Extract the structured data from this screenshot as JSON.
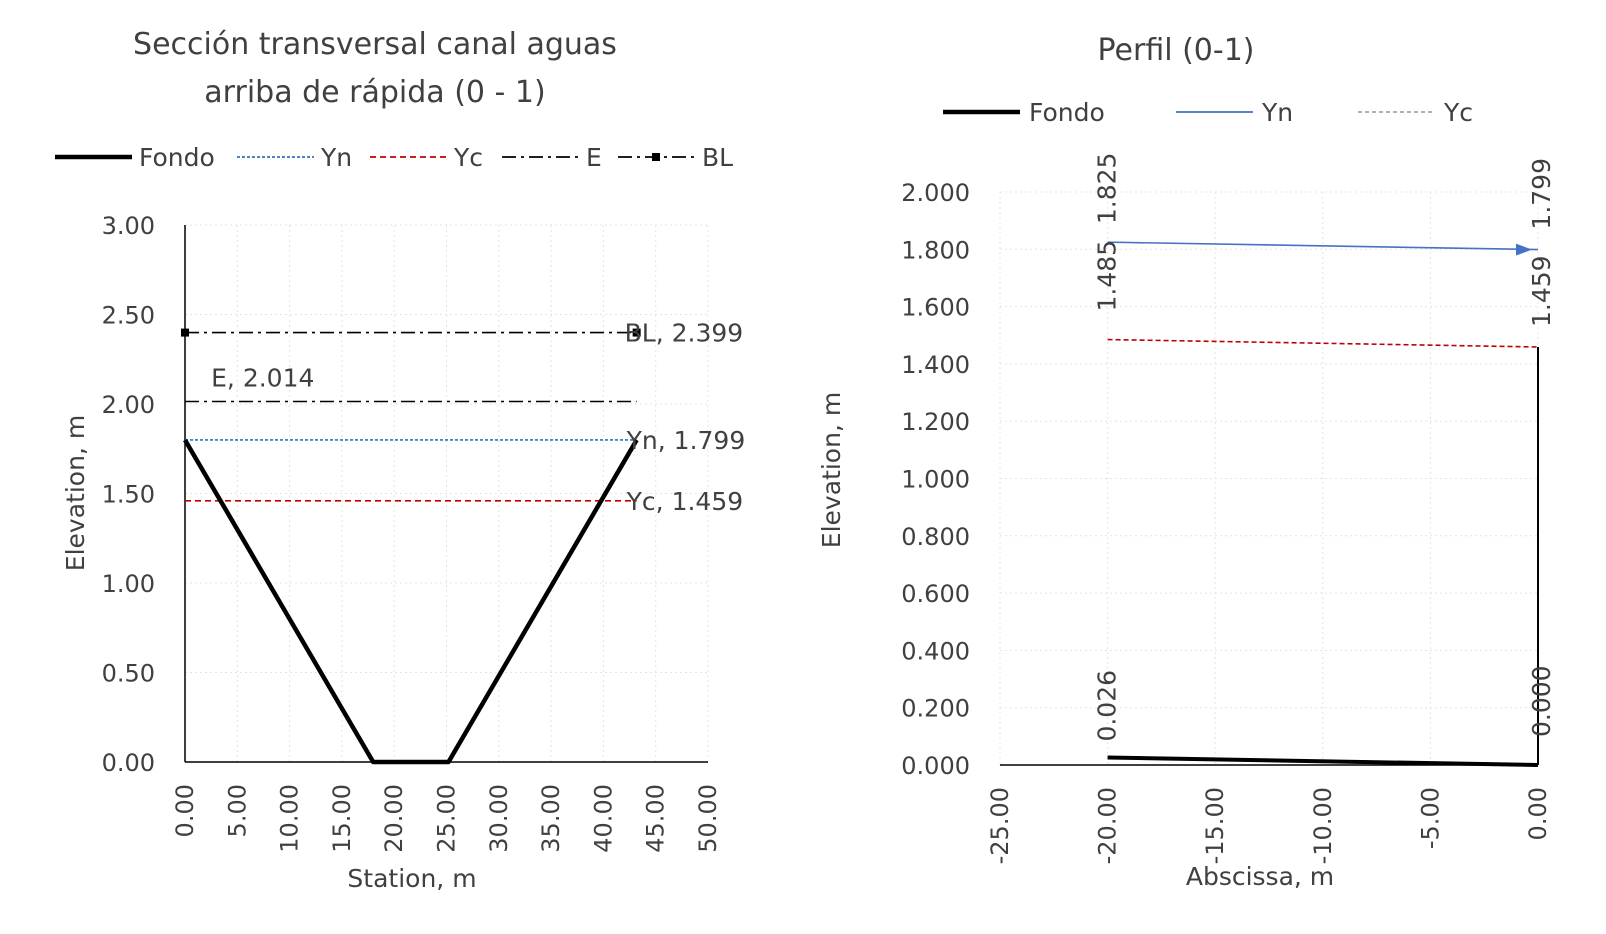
{
  "chart_data": [
    {
      "type": "line",
      "title_lines": [
        "Sección transversal canal aguas",
        "arriba de rápida (0 - 1)"
      ],
      "xlabel": "Station, m",
      "ylabel": "Elevation, m",
      "xlim": [
        0,
        50
      ],
      "ylim": [
        0,
        3
      ],
      "x_ticks": [
        "0.00",
        "5.00",
        "10.00",
        "15.00",
        "20.00",
        "25.00",
        "30.00",
        "35.00",
        "40.00",
        "45.00",
        "50.00"
      ],
      "y_ticks": [
        "0.00",
        "0.50",
        "1.00",
        "1.50",
        "2.00",
        "2.50",
        "3.00"
      ],
      "grid": true,
      "legend_position": "top",
      "legend": [
        "Fondo",
        "Yn",
        "Yc",
        "E",
        "BL"
      ],
      "series": [
        {
          "name": "Fondo",
          "color": "#000000",
          "style": "solid",
          "x": [
            0,
            17.99,
            25.19,
            43.18
          ],
          "y": [
            1.799,
            0,
            0,
            1.799
          ]
        },
        {
          "name": "Yn",
          "color": "#2e75b6",
          "style": "dotted",
          "x": [
            0,
            43.18
          ],
          "y": [
            1.799,
            1.799
          ]
        },
        {
          "name": "Yc",
          "color": "#c00000",
          "style": "dashed",
          "x": [
            0,
            43.18
          ],
          "y": [
            1.459,
            1.459
          ]
        },
        {
          "name": "E",
          "color": "#000000",
          "style": "dashdot",
          "x": [
            0,
            43.18
          ],
          "y": [
            2.014,
            2.014
          ]
        },
        {
          "name": "BL",
          "color": "#000000",
          "style": "dashdot-marker",
          "x": [
            0,
            43.18
          ],
          "y": [
            2.399,
            2.399
          ]
        }
      ],
      "annotations": [
        {
          "text": "BL, 2.399",
          "x": 43.18,
          "y": 2.399,
          "anchor": "start",
          "dx": -12
        },
        {
          "text": "E, 2.014",
          "x": 2.5,
          "y": 2.014,
          "anchor": "start",
          "dx": 0,
          "dy": -24
        },
        {
          "text": "Yn, 1.799",
          "x": 43.18,
          "y": 1.799,
          "anchor": "start",
          "dx": -10
        },
        {
          "text": "Yc, 1.459",
          "x": 43.18,
          "y": 1.459,
          "anchor": "start",
          "dx": -10
        }
      ]
    },
    {
      "type": "line",
      "title_lines": [
        "Perfil (0-1)"
      ],
      "xlabel": "Abscissa, m",
      "ylabel": "Elevation, m",
      "xlim": [
        -25,
        0
      ],
      "ylim": [
        0,
        2
      ],
      "x_ticks": [
        "-25.00",
        "-20.00",
        "-15.00",
        "-10.00",
        "-5.00",
        "0.00"
      ],
      "y_ticks": [
        "0.000",
        "0.200",
        "0.400",
        "0.600",
        "0.800",
        "1.000",
        "1.200",
        "1.400",
        "1.600",
        "1.800",
        "2.000"
      ],
      "grid": true,
      "legend_position": "top",
      "legend": [
        "Fondo",
        "Yn",
        "Yc"
      ],
      "series": [
        {
          "name": "Fondo",
          "color": "#000000",
          "style": "solid",
          "x": [
            -20,
            0
          ],
          "y": [
            0.026,
            0
          ]
        },
        {
          "name": "Yn",
          "color": "#4472c4",
          "style": "solid-arrow",
          "x": [
            -20,
            0
          ],
          "y": [
            1.825,
            1.799
          ]
        },
        {
          "name": "Yc",
          "color": "#c00000",
          "style": "dashed",
          "x": [
            -20,
            0
          ],
          "y": [
            1.485,
            1.459
          ]
        }
      ],
      "legend_colors": {
        "Fondo": "#000000",
        "Yn": "#4472c4",
        "Yc": "#a5a5a5"
      },
      "vertical_lines": [
        {
          "x": 0,
          "y": [
            0,
            1.459
          ]
        }
      ],
      "rotated_labels": [
        {
          "text": "1.825",
          "x": -20,
          "y": 1.825
        },
        {
          "text": "1.485",
          "x": -20,
          "y": 1.485
        },
        {
          "text": "0.026",
          "x": -20,
          "y": 0.026
        },
        {
          "text": "1.799",
          "x": 0,
          "y": 1.799
        },
        {
          "text": "1.459",
          "x": 0,
          "y": 1.459
        },
        {
          "text": "0.000",
          "x": 0,
          "y": 0
        }
      ]
    }
  ]
}
